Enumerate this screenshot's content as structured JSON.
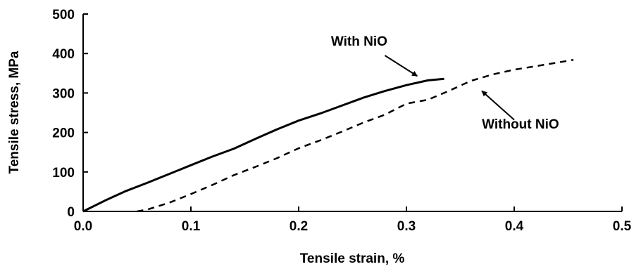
{
  "chart_data": {
    "type": "line",
    "title": "",
    "xlabel": "Tensile strain, %",
    "ylabel": "Tensile stress, MPa",
    "xlim": [
      0,
      0.5
    ],
    "ylim": [
      0,
      500
    ],
    "x_ticks": [
      0.0,
      0.1,
      0.2,
      0.3,
      0.4,
      0.5
    ],
    "x_tick_labels": [
      "0.0",
      "0.1",
      "0.2",
      "0.3",
      "0.4",
      "0.5"
    ],
    "y_ticks": [
      0,
      100,
      200,
      300,
      400,
      500
    ],
    "y_tick_labels": [
      "0",
      "100",
      "200",
      "300",
      "400",
      "500"
    ],
    "grid": false,
    "legend": "none",
    "series": [
      {
        "name": "With NiO",
        "style": "solid",
        "color": "#000000",
        "x": [
          0.0,
          0.02,
          0.04,
          0.06,
          0.08,
          0.1,
          0.12,
          0.14,
          0.16,
          0.18,
          0.2,
          0.22,
          0.24,
          0.26,
          0.28,
          0.3,
          0.32,
          0.335
        ],
        "y": [
          0,
          27,
          52,
          73,
          95,
          117,
          139,
          159,
          184,
          208,
          230,
          248,
          268,
          288,
          305,
          320,
          332,
          336
        ]
      },
      {
        "name": "Without NiO",
        "style": "dashed",
        "color": "#000000",
        "x": [
          0.05,
          0.06,
          0.08,
          0.1,
          0.12,
          0.14,
          0.16,
          0.18,
          0.2,
          0.22,
          0.24,
          0.26,
          0.28,
          0.3,
          0.32,
          0.34,
          0.36,
          0.38,
          0.4,
          0.42,
          0.44,
          0.455
        ],
        "y": [
          0,
          5,
          22,
          44,
          67,
          92,
          113,
          135,
          160,
          180,
          202,
          225,
          245,
          273,
          283,
          306,
          331,
          347,
          359,
          368,
          377,
          384
        ]
      }
    ],
    "annotations": [
      {
        "text": "With NiO",
        "x": 0.23,
        "y": 420,
        "arrow_from": [
          0.28,
          395
        ],
        "arrow_to": [
          0.31,
          343
        ]
      },
      {
        "text": "Without NiO",
        "x": 0.37,
        "y": 210,
        "arrow_from": [
          0.4,
          232
        ],
        "arrow_to": [
          0.37,
          305
        ]
      }
    ]
  }
}
